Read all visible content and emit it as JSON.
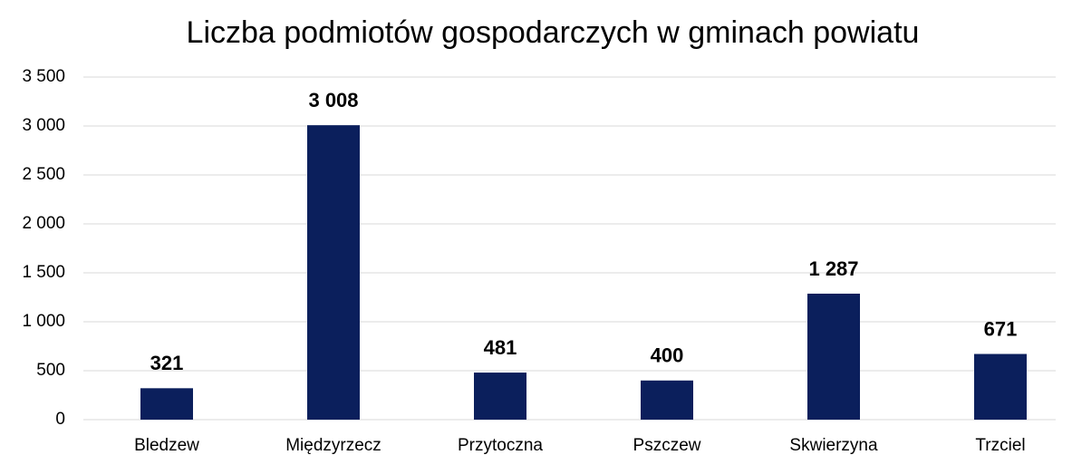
{
  "chart_data": {
    "type": "bar",
    "title": "Liczba podmiotów gospodarczych w gminach powiatu",
    "categories": [
      "Bledzew",
      "Międzyrzecz",
      "Przytoczna",
      "Pszczew",
      "Skwierzyna",
      "Trzciel"
    ],
    "values": [
      321,
      3008,
      481,
      400,
      1287,
      671
    ],
    "value_labels": [
      "321",
      "3 008",
      "481",
      "400",
      "1 287",
      "671"
    ],
    "color": "#0b1f5c",
    "ylim": [
      0,
      3500
    ],
    "yticks": [
      0,
      500,
      {
        "value": 1000,
        "label": "1 000"
      },
      {
        "value": 1500,
        "label": "1 500"
      },
      {
        "value": 2000,
        "label": "2 000"
      },
      {
        "value": 2500,
        "label": "2 500"
      },
      {
        "value": 3000,
        "label": "3 000"
      },
      {
        "value": 3500,
        "label": "3 500"
      }
    ],
    "grid": true
  }
}
